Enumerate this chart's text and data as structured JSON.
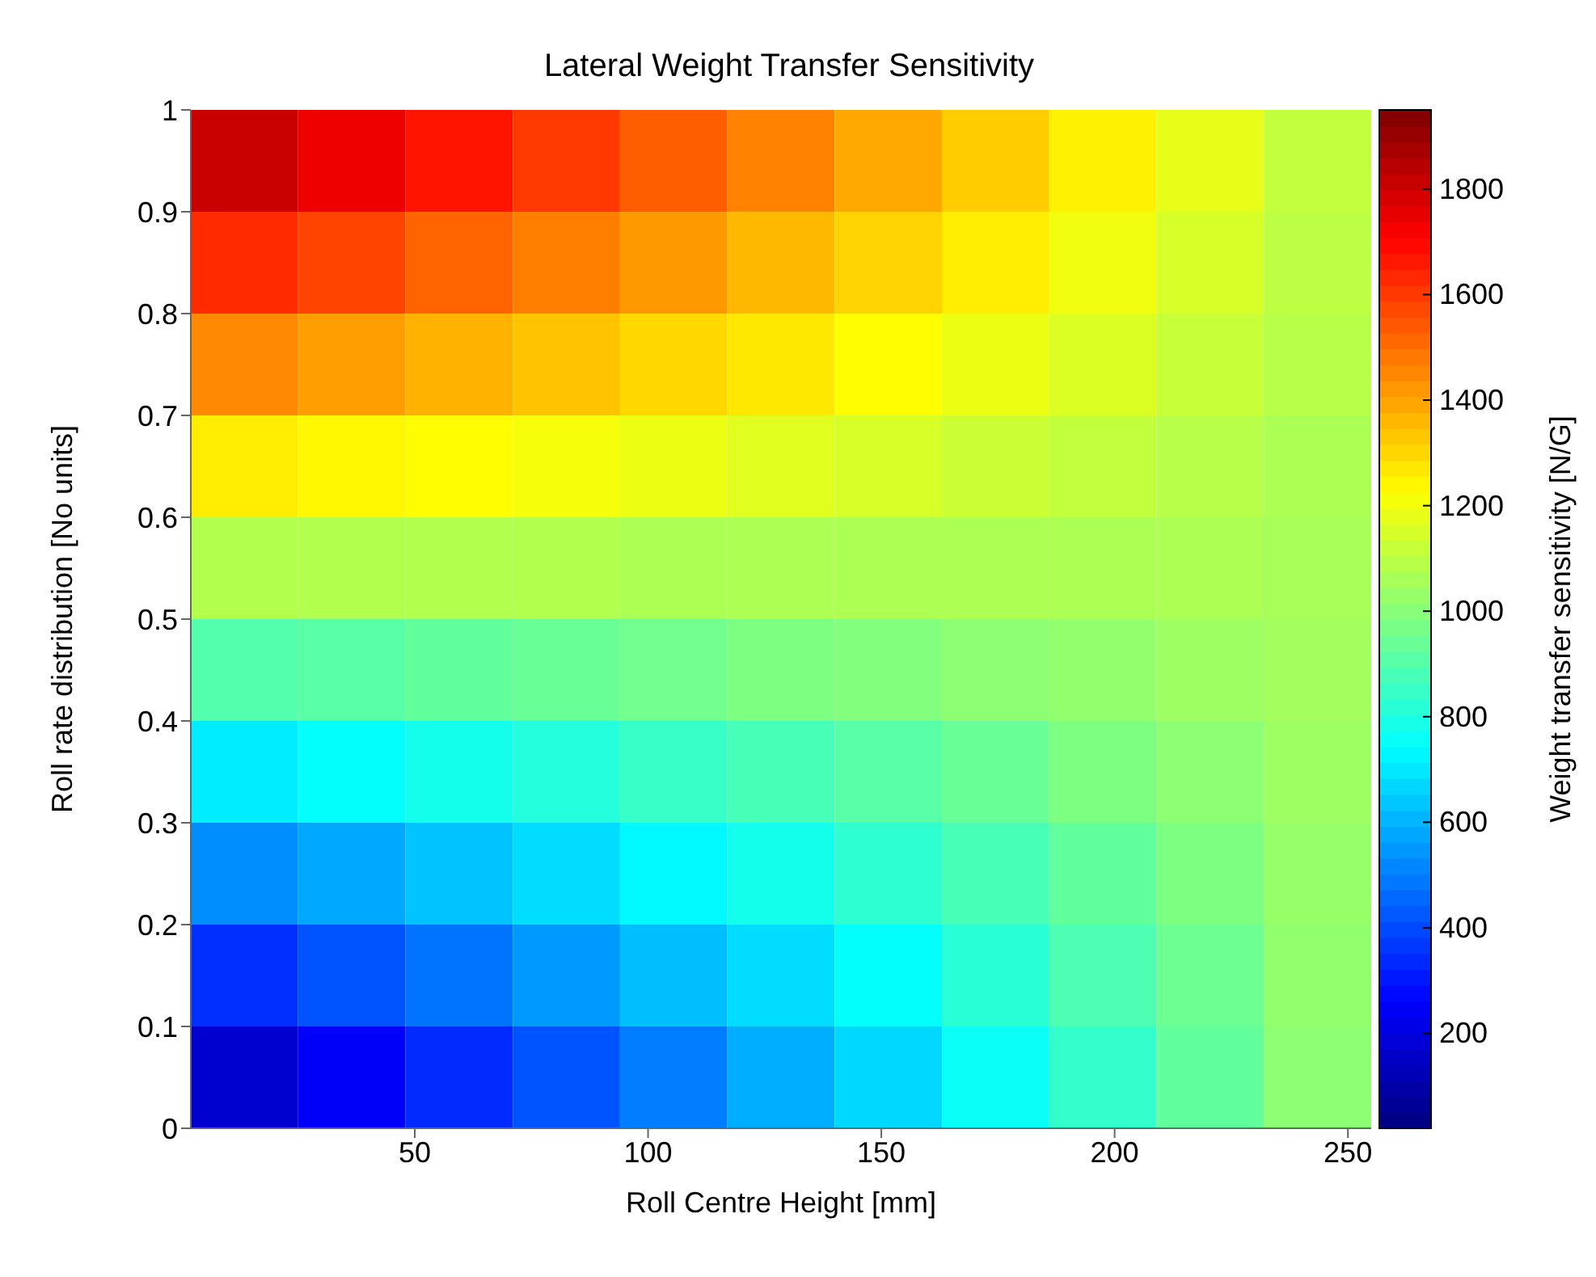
{
  "chart_data": {
    "type": "heatmap",
    "title": "Lateral Weight Transfer Sensitivity",
    "xlabel": "Roll Centre Height [mm]",
    "ylabel": "Roll rate distribution  [No units]",
    "clabel": "Weight transfer sensitivity [N/G]",
    "xlim": [
      2,
      255
    ],
    "xticks": [
      50,
      100,
      150,
      200,
      250
    ],
    "ylim": [
      0,
      1
    ],
    "yticks": [
      0,
      0.1,
      0.2,
      0.3,
      0.4,
      0.5,
      0.6,
      0.7,
      0.8,
      0.9,
      1
    ],
    "clim": [
      20,
      1950
    ],
    "cticks": [
      200,
      400,
      600,
      800,
      1000,
      1200,
      1400,
      1600,
      1800
    ],
    "cells": [
      [
        1810,
        1740,
        1670,
        1600,
        1530,
        1460,
        1390,
        1320,
        1250,
        1180,
        1110
      ],
      [
        1630,
        1580,
        1520,
        1470,
        1420,
        1360,
        1310,
        1260,
        1200,
        1150,
        1100
      ],
      [
        1450,
        1410,
        1370,
        1340,
        1300,
        1270,
        1230,
        1190,
        1160,
        1120,
        1090
      ],
      [
        1260,
        1240,
        1230,
        1210,
        1190,
        1170,
        1150,
        1130,
        1110,
        1090,
        1070
      ],
      [
        1080,
        1080,
        1080,
        1080,
        1070,
        1070,
        1070,
        1070,
        1070,
        1070,
        1060
      ],
      [
        900,
        910,
        930,
        940,
        960,
        980,
        990,
        1010,
        1020,
        1040,
        1050
      ],
      [
        710,
        750,
        780,
        810,
        850,
        880,
        910,
        940,
        980,
        1010,
        1040
      ],
      [
        530,
        580,
        630,
        680,
        730,
        780,
        830,
        880,
        930,
        980,
        1030
      ],
      [
        350,
        420,
        480,
        550,
        620,
        680,
        750,
        820,
        890,
        950,
        1020
      ],
      [
        170,
        250,
        340,
        420,
        500,
        590,
        670,
        760,
        840,
        930,
        1010
      ]
    ]
  }
}
